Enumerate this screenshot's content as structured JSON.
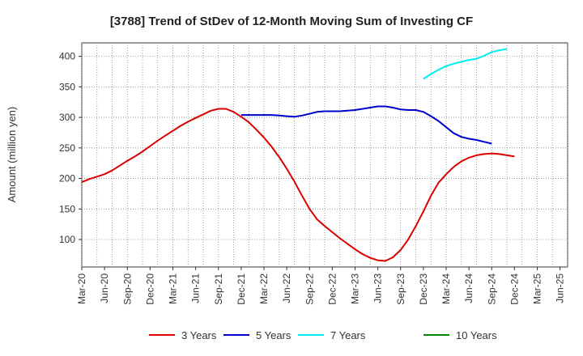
{
  "chart_data": {
    "type": "line",
    "title": "[3788]  Trend of StDev of 12-Month Moving Sum of Investing CF",
    "ylabel": "Amount (million yen)",
    "xlabel": "",
    "ylim": [
      55,
      422
    ],
    "yticks": [
      100,
      150,
      200,
      250,
      300,
      350,
      400
    ],
    "x_tick_labels": [
      "Mar-20",
      "Jun-20",
      "Sep-20",
      "Dec-20",
      "Mar-21",
      "Jun-21",
      "Sep-21",
      "Dec-21",
      "Mar-22",
      "Jun-22",
      "Sep-22",
      "Dec-22",
      "Mar-23",
      "Jun-23",
      "Sep-23",
      "Dec-23",
      "Mar-24",
      "Jun-24",
      "Sep-24",
      "Dec-24",
      "Mar-25",
      "Jun-25"
    ],
    "grid": true,
    "legend_position": "bottom",
    "series": [
      {
        "name": "3 Years",
        "color": "#dd0000",
        "start_index": 0,
        "values": [
          194,
          199,
          203,
          207,
          213,
          221,
          229,
          236,
          244,
          253,
          262,
          270,
          278,
          286,
          293,
          299,
          305,
          311,
          314,
          314,
          309,
          301,
          292,
          280,
          267,
          252,
          235,
          216,
          195,
          172,
          150,
          133,
          122,
          112,
          102,
          93,
          84,
          76,
          70,
          66,
          65,
          71,
          83,
          100,
          122,
          146,
          172,
          193,
          207,
          219,
          228,
          234,
          238,
          240,
          241,
          240,
          238,
          236
        ]
      },
      {
        "name": "5 Years",
        "color": "#0000cc",
        "start_index": 21,
        "values": [
          304,
          304,
          304,
          304,
          304,
          303,
          302,
          301,
          303,
          306,
          309,
          310,
          310,
          310,
          311,
          312,
          314,
          316,
          318,
          318,
          316,
          313,
          312,
          312,
          309,
          302,
          294,
          284,
          274,
          268,
          265,
          263,
          260,
          257
        ]
      },
      {
        "name": "7 Years",
        "color": "#00eeee",
        "start_index": 45,
        "values": [
          363,
          371,
          378,
          384,
          388,
          391,
          394,
          396,
          401,
          407,
          410,
          412
        ]
      },
      {
        "name": "10 Years",
        "color": "#008800",
        "start_index": null,
        "values": []
      }
    ]
  }
}
